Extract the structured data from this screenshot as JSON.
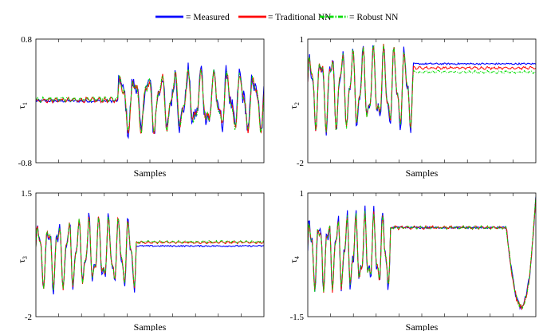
{
  "legend": {
    "placement": "top-center",
    "items": [
      {
        "label": "= Measured",
        "color": "#0000ff",
        "dash": "solid"
      },
      {
        "label": "= Traditional NN",
        "color": "#ff0000",
        "dash": "solid"
      },
      {
        "label": "= Robust NN",
        "color": "#00dd00",
        "dash": "dashdot"
      }
    ]
  },
  "chart_data": [
    {
      "type": "line",
      "ylabel_main": "τ",
      "ylabel_sub": "1",
      "xlabel": "Samples",
      "ylim": [
        -0.8,
        0.8
      ],
      "y_tick_labels": [
        "0.8",
        "-0.8"
      ],
      "segments": [
        {
          "kind": "flat",
          "x": [
            0,
            0.36
          ],
          "values": {
            "Measured": 0.0,
            "Traditional NN": 0.01,
            "Robust NN": 0.02
          }
        },
        {
          "kind": "oscillation",
          "x": [
            0.36,
            1.0
          ],
          "amplitude": 0.5,
          "cycles": 11
        }
      ],
      "grid": false
    },
    {
      "type": "line",
      "ylabel_main": "τ",
      "ylabel_sub": "2",
      "xlabel": "Samples",
      "ylim": [
        -2,
        1
      ],
      "y_tick_labels": [
        "1",
        "-2"
      ],
      "segments": [
        {
          "kind": "oscillation",
          "x": [
            0,
            0.46
          ],
          "amplitude": 1.3,
          "cycles": 10
        },
        {
          "kind": "flat",
          "x": [
            0.46,
            1.0
          ],
          "values": {
            "Measured": 0.4,
            "Traditional NN": 0.3,
            "Robust NN": 0.2
          }
        }
      ],
      "grid": false
    },
    {
      "type": "line",
      "ylabel_main": "τ",
      "ylabel_sub": "3",
      "xlabel": "Samples",
      "ylim": [
        -2,
        1.5
      ],
      "y_tick_labels": [
        "1.5",
        "-2"
      ],
      "segments": [
        {
          "kind": "oscillation",
          "x": [
            0,
            0.44
          ],
          "amplitude": 1.3,
          "cycles": 10
        },
        {
          "kind": "flat",
          "x": [
            0.44,
            1.0
          ],
          "values": {
            "Measured": 0.0,
            "Traditional NN": 0.1,
            "Robust NN": 0.12
          }
        }
      ],
      "grid": false
    },
    {
      "type": "line",
      "ylabel_main": "τ",
      "ylabel_sub": "4",
      "xlabel": "Samples",
      "ylim": [
        -1.5,
        1
      ],
      "y_tick_labels": [
        "1",
        "-1.5"
      ],
      "segments": [
        {
          "kind": "oscillation",
          "x": [
            0,
            0.36
          ],
          "amplitude": 1.0,
          "cycles": 9
        },
        {
          "kind": "flat",
          "x": [
            0.36,
            0.87
          ],
          "values": {
            "Measured": 0.3,
            "Traditional NN": 0.3,
            "Robust NN": 0.3
          }
        },
        {
          "kind": "dip",
          "x": [
            0.87,
            1.0
          ],
          "min": -1.3
        }
      ],
      "grid": false
    }
  ]
}
